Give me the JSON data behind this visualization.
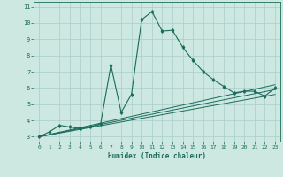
{
  "xlabel": "Humidex (Indice chaleur)",
  "ylabel": "",
  "bg_color": "#cce8e0",
  "grid_color": "#aacccc",
  "line_color": "#1a6b5a",
  "xlim": [
    -0.5,
    23.5
  ],
  "ylim": [
    2.7,
    11.3
  ],
  "xticks": [
    0,
    1,
    2,
    3,
    4,
    5,
    6,
    7,
    8,
    9,
    10,
    11,
    12,
    13,
    14,
    15,
    16,
    17,
    18,
    19,
    20,
    21,
    22,
    23
  ],
  "yticks": [
    3,
    4,
    5,
    6,
    7,
    8,
    9,
    10,
    11
  ],
  "main_line_x": [
    0,
    1,
    2,
    3,
    4,
    5,
    6,
    7,
    8,
    9,
    10,
    11,
    12,
    13,
    14,
    15,
    16,
    17,
    18,
    19,
    20,
    21,
    22,
    23
  ],
  "main_line_y": [
    3.0,
    3.3,
    3.7,
    3.6,
    3.5,
    3.6,
    3.8,
    7.4,
    4.5,
    5.6,
    10.2,
    10.7,
    9.5,
    9.55,
    8.5,
    7.7,
    7.0,
    6.5,
    6.1,
    5.7,
    5.8,
    5.8,
    5.5,
    6.0
  ],
  "line2_x": [
    0,
    23
  ],
  "line2_y": [
    3.0,
    6.2
  ],
  "line3_x": [
    0,
    23
  ],
  "line3_y": [
    3.0,
    5.9
  ],
  "line4_x": [
    0,
    23
  ],
  "line4_y": [
    3.0,
    5.6
  ]
}
